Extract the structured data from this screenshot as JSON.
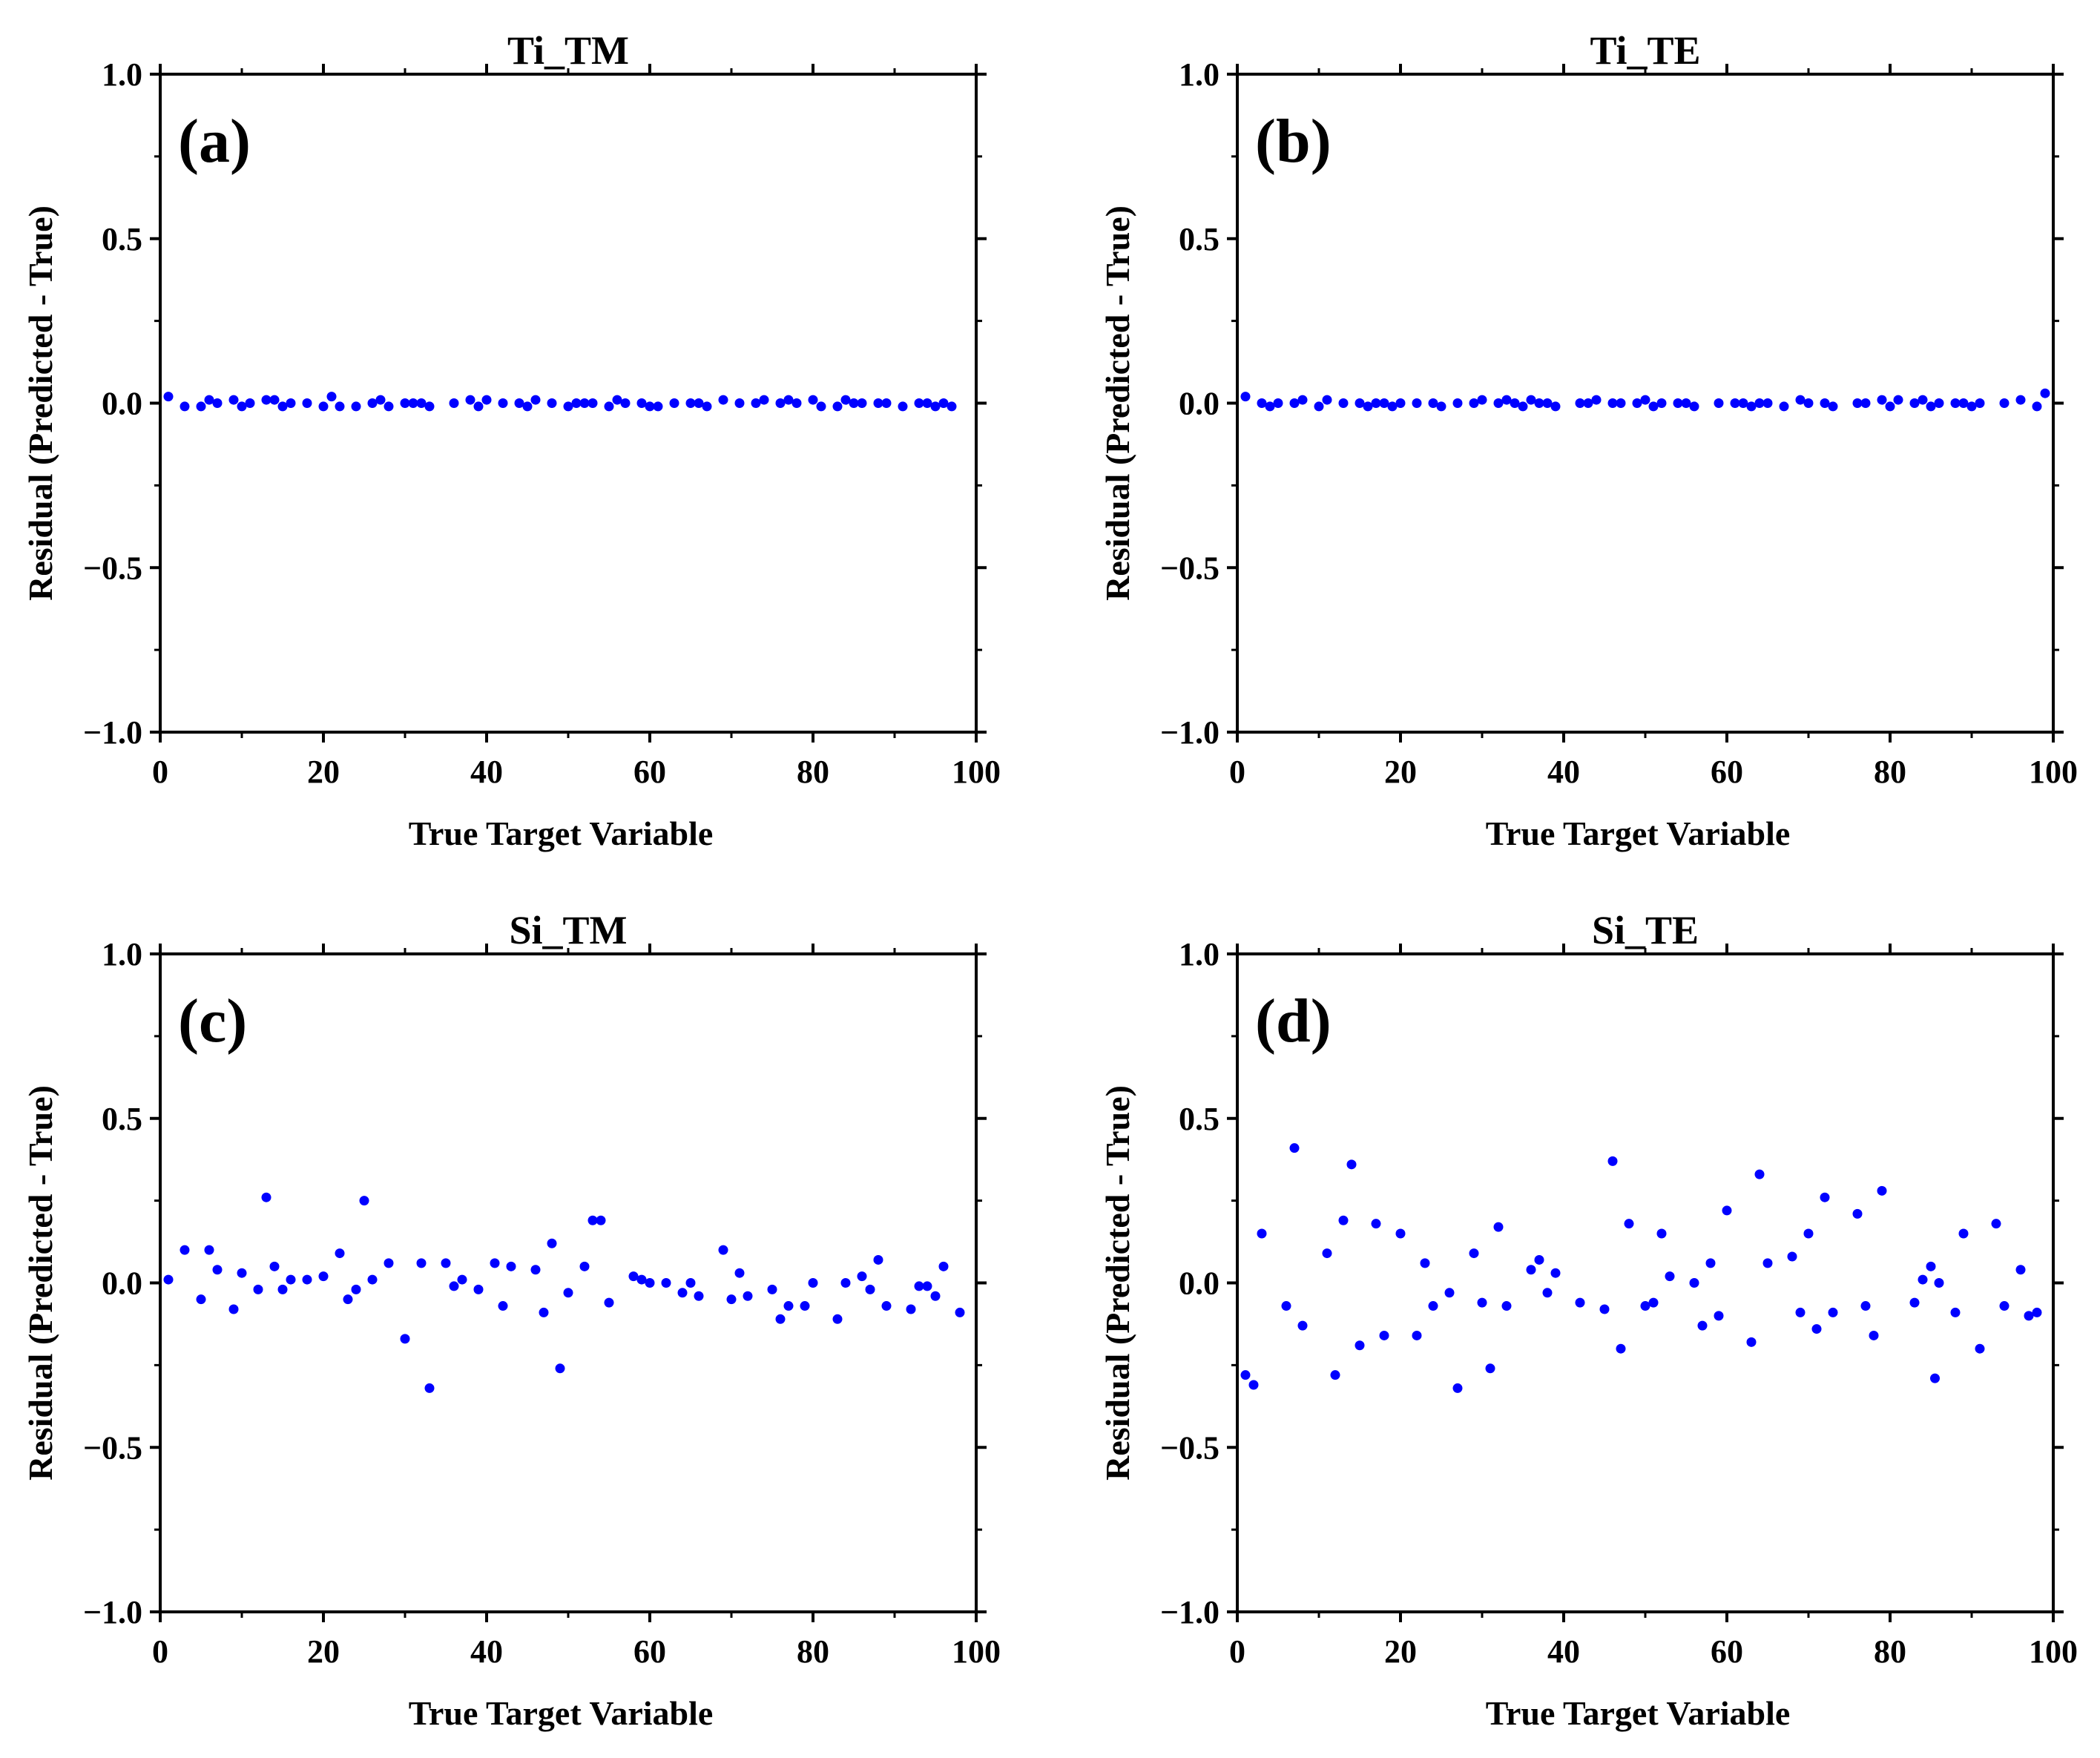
{
  "chart_data": [
    {
      "type": "scatter",
      "panel_label": "(a)",
      "title": "Ti_TM",
      "xlabel": "True Target Variable",
      "ylabel": "Residual (Predicted - True)",
      "xlim": [
        0,
        100
      ],
      "ylim": [
        -1.0,
        1.0
      ],
      "xticks": [
        "0",
        "20",
        "40",
        "60",
        "80",
        "100"
      ],
      "yticks": [
        "1.0",
        "0.5",
        "0.0",
        "−0.5",
        "−1.0"
      ],
      "point_color": "#0000ff",
      "points": [
        [
          1,
          0.02
        ],
        [
          3,
          -0.01
        ],
        [
          5,
          -0.01
        ],
        [
          6,
          0.01
        ],
        [
          7,
          0.0
        ],
        [
          9,
          0.01
        ],
        [
          10,
          -0.01
        ],
        [
          11,
          0.0
        ],
        [
          13,
          0.01
        ],
        [
          14,
          0.01
        ],
        [
          15,
          -0.01
        ],
        [
          16,
          0.0
        ],
        [
          18,
          0.0
        ],
        [
          20,
          -0.01
        ],
        [
          21,
          0.02
        ],
        [
          22,
          -0.01
        ],
        [
          24,
          -0.01
        ],
        [
          26,
          0.0
        ],
        [
          27,
          0.01
        ],
        [
          28,
          -0.01
        ],
        [
          30,
          0.0
        ],
        [
          31,
          0.0
        ],
        [
          32,
          0.0
        ],
        [
          33,
          -0.01
        ],
        [
          36,
          0.0
        ],
        [
          38,
          0.01
        ],
        [
          39,
          -0.01
        ],
        [
          40,
          0.01
        ],
        [
          42,
          0.0
        ],
        [
          44,
          0.0
        ],
        [
          45,
          -0.01
        ],
        [
          46,
          0.01
        ],
        [
          48,
          0.0
        ],
        [
          50,
          -0.01
        ],
        [
          51,
          0.0
        ],
        [
          52,
          0.0
        ],
        [
          53,
          0.0
        ],
        [
          55,
          -0.01
        ],
        [
          56,
          0.01
        ],
        [
          57,
          0.0
        ],
        [
          59,
          0.0
        ],
        [
          60,
          -0.01
        ],
        [
          61,
          -0.01
        ],
        [
          63,
          0.0
        ],
        [
          65,
          0.0
        ],
        [
          66,
          0.0
        ],
        [
          67,
          -0.01
        ],
        [
          69,
          0.01
        ],
        [
          71,
          0.0
        ],
        [
          73,
          0.0
        ],
        [
          74,
          0.01
        ],
        [
          76,
          0.0
        ],
        [
          77,
          0.01
        ],
        [
          78,
          0.0
        ],
        [
          80,
          0.01
        ],
        [
          81,
          -0.01
        ],
        [
          83,
          -0.01
        ],
        [
          84,
          0.01
        ],
        [
          85,
          0.0
        ],
        [
          86,
          0.0
        ],
        [
          88,
          0.0
        ],
        [
          89,
          0.0
        ],
        [
          91,
          -0.01
        ],
        [
          93,
          0.0
        ],
        [
          94,
          0.0
        ],
        [
          95,
          -0.01
        ],
        [
          96,
          0.0
        ],
        [
          97,
          -0.01
        ]
      ]
    },
    {
      "type": "scatter",
      "panel_label": "(b)",
      "title": "Ti_TE",
      "xlabel": "True Target Variable",
      "ylabel": "Residual (Predicted - True)",
      "xlim": [
        0,
        100
      ],
      "ylim": [
        -1.0,
        1.0
      ],
      "xticks": [
        "0",
        "20",
        "40",
        "60",
        "80",
        "100"
      ],
      "yticks": [
        "1.0",
        "0.5",
        "0.0",
        "−0.5",
        "−1.0"
      ],
      "point_color": "#0000ff",
      "points": [
        [
          1,
          0.02
        ],
        [
          3,
          0.0
        ],
        [
          4,
          -0.01
        ],
        [
          5,
          0.0
        ],
        [
          7,
          0.0
        ],
        [
          8,
          0.01
        ],
        [
          10,
          -0.01
        ],
        [
          11,
          0.01
        ],
        [
          13,
          0.0
        ],
        [
          15,
          0.0
        ],
        [
          16,
          -0.01
        ],
        [
          17,
          0.0
        ],
        [
          18,
          0.0
        ],
        [
          19,
          -0.01
        ],
        [
          20,
          0.0
        ],
        [
          22,
          0.0
        ],
        [
          24,
          0.0
        ],
        [
          25,
          -0.01
        ],
        [
          27,
          0.0
        ],
        [
          29,
          0.0
        ],
        [
          30,
          0.01
        ],
        [
          32,
          0.0
        ],
        [
          33,
          0.01
        ],
        [
          34,
          0.0
        ],
        [
          35,
          -0.01
        ],
        [
          36,
          0.01
        ],
        [
          37,
          0.0
        ],
        [
          38,
          0.0
        ],
        [
          39,
          -0.01
        ],
        [
          42,
          0.0
        ],
        [
          43,
          0.0
        ],
        [
          44,
          0.01
        ],
        [
          46,
          0.0
        ],
        [
          47,
          0.0
        ],
        [
          49,
          0.0
        ],
        [
          50,
          0.01
        ],
        [
          51,
          -0.01
        ],
        [
          52,
          0.0
        ],
        [
          54,
          0.0
        ],
        [
          55,
          0.0
        ],
        [
          56,
          -0.01
        ],
        [
          59,
          0.0
        ],
        [
          61,
          0.0
        ],
        [
          62,
          0.0
        ],
        [
          63,
          -0.01
        ],
        [
          64,
          0.0
        ],
        [
          65,
          0.0
        ],
        [
          67,
          -0.01
        ],
        [
          69,
          0.01
        ],
        [
          70,
          0.0
        ],
        [
          72,
          0.0
        ],
        [
          73,
          -0.01
        ],
        [
          76,
          0.0
        ],
        [
          77,
          0.0
        ],
        [
          79,
          0.01
        ],
        [
          80,
          -0.01
        ],
        [
          81,
          0.01
        ],
        [
          83,
          0.0
        ],
        [
          84,
          0.01
        ],
        [
          85,
          -0.01
        ],
        [
          86,
          0.0
        ],
        [
          88,
          0.0
        ],
        [
          89,
          0.0
        ],
        [
          90,
          -0.01
        ],
        [
          91,
          0.0
        ],
        [
          94,
          0.0
        ],
        [
          96,
          0.01
        ],
        [
          98,
          -0.01
        ],
        [
          99,
          0.03
        ]
      ]
    },
    {
      "type": "scatter",
      "panel_label": "(c)",
      "title": "Si_TM",
      "xlabel": "True Target Variable",
      "ylabel": "Residual (Predicted - True)",
      "xlim": [
        0,
        100
      ],
      "ylim": [
        -1.0,
        1.0
      ],
      "xticks": [
        "0",
        "20",
        "40",
        "60",
        "80",
        "100"
      ],
      "yticks": [
        "1.0",
        "0.5",
        "0.0",
        "−0.5",
        "−1.0"
      ],
      "point_color": "#0000ff",
      "points": [
        [
          1,
          0.01
        ],
        [
          3,
          0.1
        ],
        [
          5,
          -0.05
        ],
        [
          6,
          0.1
        ],
        [
          7,
          0.04
        ],
        [
          9,
          -0.08
        ],
        [
          10,
          0.03
        ],
        [
          12,
          -0.02
        ],
        [
          13,
          0.26
        ],
        [
          14,
          0.05
        ],
        [
          15,
          -0.02
        ],
        [
          16,
          0.01
        ],
        [
          18,
          0.01
        ],
        [
          20,
          0.02
        ],
        [
          22,
          0.09
        ],
        [
          23,
          -0.05
        ],
        [
          24,
          -0.02
        ],
        [
          25,
          0.25
        ],
        [
          26,
          0.01
        ],
        [
          28,
          0.06
        ],
        [
          30,
          -0.17
        ],
        [
          32,
          0.06
        ],
        [
          33,
          -0.32
        ],
        [
          35,
          0.06
        ],
        [
          36,
          -0.01
        ],
        [
          37,
          0.01
        ],
        [
          39,
          -0.02
        ],
        [
          41,
          0.06
        ],
        [
          42,
          -0.07
        ],
        [
          43,
          0.05
        ],
        [
          46,
          0.04
        ],
        [
          47,
          -0.09
        ],
        [
          48,
          0.12
        ],
        [
          49,
          -0.26
        ],
        [
          50,
          -0.03
        ],
        [
          52,
          0.05
        ],
        [
          53,
          0.19
        ],
        [
          54,
          0.19
        ],
        [
          55,
          -0.06
        ],
        [
          58,
          0.02
        ],
        [
          59,
          0.01
        ],
        [
          60,
          0.0
        ],
        [
          62,
          0.0
        ],
        [
          64,
          -0.03
        ],
        [
          65,
          0.0
        ],
        [
          66,
          -0.04
        ],
        [
          69,
          0.1
        ],
        [
          70,
          -0.05
        ],
        [
          71,
          0.03
        ],
        [
          72,
          -0.04
        ],
        [
          75,
          -0.02
        ],
        [
          76,
          -0.11
        ],
        [
          77,
          -0.07
        ],
        [
          79,
          -0.07
        ],
        [
          80,
          0.0
        ],
        [
          83,
          -0.11
        ],
        [
          84,
          0.0
        ],
        [
          86,
          0.02
        ],
        [
          87,
          -0.02
        ],
        [
          88,
          0.07
        ],
        [
          89,
          -0.07
        ],
        [
          92,
          -0.08
        ],
        [
          93,
          -0.01
        ],
        [
          94,
          -0.01
        ],
        [
          95,
          -0.04
        ],
        [
          96,
          0.05
        ],
        [
          98,
          -0.09
        ]
      ]
    },
    {
      "type": "scatter",
      "panel_label": "(d)",
      "title": "Si_TE",
      "xlabel": "True Target Variable",
      "ylabel": "Residual (Predicted - True)",
      "xlim": [
        0,
        100
      ],
      "ylim": [
        -1.0,
        1.0
      ],
      "xticks": [
        "0",
        "20",
        "40",
        "60",
        "80",
        "100"
      ],
      "yticks": [
        "1.0",
        "0.5",
        "0.0",
        "−0.5",
        "−1.0"
      ],
      "point_color": "#0000ff",
      "points": [
        [
          1,
          -0.28
        ],
        [
          2,
          -0.31
        ],
        [
          3,
          0.15
        ],
        [
          6,
          -0.07
        ],
        [
          7,
          0.41
        ],
        [
          8,
          -0.13
        ],
        [
          11,
          0.09
        ],
        [
          12,
          -0.28
        ],
        [
          13,
          0.19
        ],
        [
          14,
          0.36
        ],
        [
          15,
          -0.19
        ],
        [
          17,
          0.18
        ],
        [
          18,
          -0.16
        ],
        [
          20,
          0.15
        ],
        [
          22,
          -0.16
        ],
        [
          23,
          0.06
        ],
        [
          24,
          -0.07
        ],
        [
          26,
          -0.03
        ],
        [
          27,
          -0.32
        ],
        [
          29,
          0.09
        ],
        [
          30,
          -0.06
        ],
        [
          31,
          -0.26
        ],
        [
          32,
          0.17
        ],
        [
          33,
          -0.07
        ],
        [
          36,
          0.04
        ],
        [
          37,
          0.07
        ],
        [
          38,
          -0.03
        ],
        [
          39,
          0.03
        ],
        [
          42,
          -0.06
        ],
        [
          45,
          -0.08
        ],
        [
          46,
          0.37
        ],
        [
          47,
          -0.2
        ],
        [
          48,
          0.18
        ],
        [
          50,
          -0.07
        ],
        [
          51,
          -0.06
        ],
        [
          52,
          0.15
        ],
        [
          53,
          0.02
        ],
        [
          56,
          0.0
        ],
        [
          57,
          -0.13
        ],
        [
          58,
          0.06
        ],
        [
          59,
          -0.1
        ],
        [
          60,
          0.22
        ],
        [
          63,
          -0.18
        ],
        [
          64,
          0.33
        ],
        [
          65,
          0.06
        ],
        [
          68,
          0.08
        ],
        [
          69,
          -0.09
        ],
        [
          70,
          0.15
        ],
        [
          71,
          -0.14
        ],
        [
          72,
          0.26
        ],
        [
          73,
          -0.09
        ],
        [
          76,
          0.21
        ],
        [
          77,
          -0.07
        ],
        [
          78,
          -0.16
        ],
        [
          79,
          0.28
        ],
        [
          83,
          -0.06
        ],
        [
          84,
          0.01
        ],
        [
          85,
          0.05
        ],
        [
          85.5,
          -0.29
        ],
        [
          86,
          0.0
        ],
        [
          88,
          -0.09
        ],
        [
          89,
          0.15
        ],
        [
          91,
          -0.2
        ],
        [
          93,
          0.18
        ],
        [
          94,
          -0.07
        ],
        [
          96,
          0.04
        ],
        [
          97,
          -0.1
        ],
        [
          98,
          -0.09
        ]
      ]
    }
  ]
}
